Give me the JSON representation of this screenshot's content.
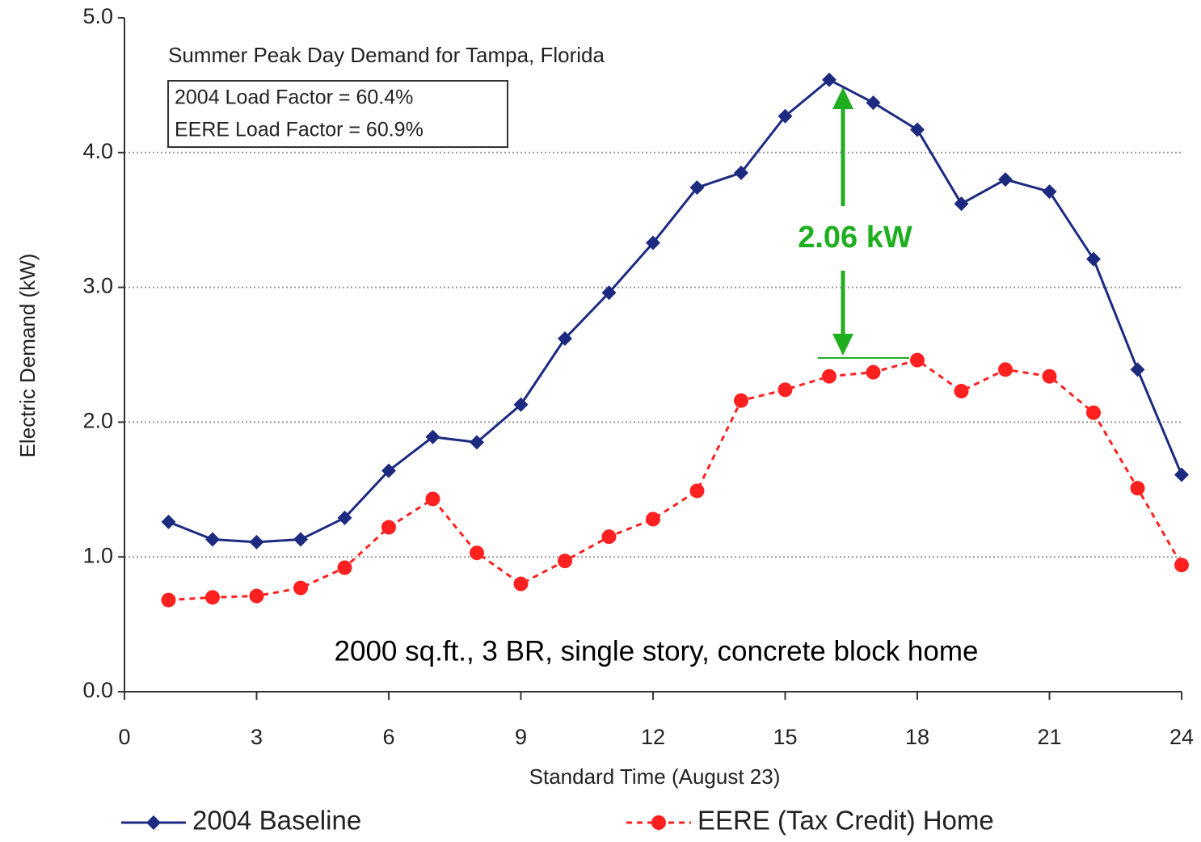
{
  "chart_data": {
    "type": "line",
    "annotations": [
      "Summer Peak Day Demand for Tampa, Florida",
      "2004 Load Factor = 60.4%",
      "EERE Load Factor = 60.9%",
      "2.06 kW",
      "2000 sq.ft., 3 BR, single story, concrete block home"
    ],
    "x_label": "Standard Time (August 23)",
    "y_label": "Electric Demand (kW)",
    "x": [
      1,
      2,
      3,
      4,
      5,
      6,
      7,
      8,
      9,
      10,
      11,
      12,
      13,
      14,
      15,
      16,
      17,
      18,
      19,
      20,
      21,
      22,
      23,
      24
    ],
    "series": [
      {
        "name": "2004 Baseline",
        "color": "#1c2a80",
        "marker": "diamond",
        "dashed": false,
        "values": [
          1.26,
          1.13,
          1.11,
          1.13,
          1.29,
          1.64,
          1.89,
          1.85,
          2.13,
          2.62,
          2.96,
          3.33,
          3.74,
          3.85,
          4.27,
          4.54,
          4.37,
          4.17,
          3.62,
          3.8,
          3.71,
          3.21,
          2.39,
          1.61
        ]
      },
      {
        "name": "EERE (Tax Credit) Home",
        "color": "#ff2020",
        "marker": "circle",
        "dashed": true,
        "values": [
          0.68,
          0.7,
          0.71,
          0.77,
          0.92,
          1.22,
          1.43,
          1.03,
          0.8,
          0.97,
          1.15,
          1.28,
          1.49,
          2.16,
          2.24,
          2.34,
          2.37,
          2.46,
          2.23,
          2.39,
          2.34,
          2.07,
          1.51,
          0.94
        ]
      }
    ],
    "xlim": [
      0,
      24
    ],
    "xticks": [
      0,
      3,
      6,
      9,
      12,
      15,
      18,
      21,
      24
    ],
    "ylim": [
      0,
      5
    ],
    "yticks": [
      {
        "value": 0,
        "label": "0.0"
      },
      {
        "value": 1,
        "label": "1.0"
      },
      {
        "value": 2,
        "label": "2.0"
      },
      {
        "value": 3,
        "label": "3.0"
      },
      {
        "value": 4,
        "label": "4.0"
      },
      {
        "value": 5,
        "label": "5.0"
      }
    ],
    "grid": true,
    "legend": "bottom"
  }
}
